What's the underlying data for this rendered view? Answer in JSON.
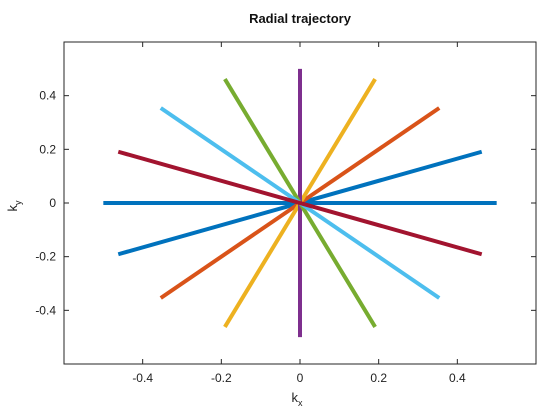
{
  "chart_data": {
    "type": "line",
    "title": "Radial trajectory",
    "xlabel": {
      "base": "k",
      "sub": "x"
    },
    "ylabel": {
      "base": "k",
      "sub": "y"
    },
    "xlim": [
      -0.6,
      0.6
    ],
    "ylim": [
      -0.6,
      0.6
    ],
    "xticks": [
      -0.4,
      -0.2,
      0,
      0.2,
      0.4
    ],
    "xtick_labels": [
      "-0.4",
      "-0.2",
      "0",
      "0.2",
      "0.4"
    ],
    "yticks": [
      -0.4,
      -0.2,
      0,
      0.2,
      0.4
    ],
    "ytick_labels": [
      "-0.4",
      "-0.2",
      "0",
      "0.2",
      "0.4"
    ],
    "grid": false,
    "series": [
      {
        "color": "#0072BD",
        "x": [
          -0.5,
          0.5
        ],
        "y": [
          0,
          0
        ]
      },
      {
        "color": "#0072BD",
        "x": [
          -0.462,
          0.462
        ],
        "y": [
          -0.191,
          0.191
        ]
      },
      {
        "color": "#D95319",
        "x": [
          -0.354,
          0.354
        ],
        "y": [
          -0.354,
          0.354
        ]
      },
      {
        "color": "#EDB120",
        "x": [
          -0.191,
          0.191
        ],
        "y": [
          -0.462,
          0.462
        ]
      },
      {
        "color": "#7E2F8E",
        "x": [
          0,
          0
        ],
        "y": [
          -0.5,
          0.5
        ]
      },
      {
        "color": "#77AC30",
        "x": [
          0.191,
          -0.191
        ],
        "y": [
          -0.462,
          0.462
        ]
      },
      {
        "color": "#4DBEEE",
        "x": [
          0.354,
          -0.354
        ],
        "y": [
          -0.354,
          0.354
        ]
      },
      {
        "color": "#A2142F",
        "x": [
          0.462,
          -0.462
        ],
        "y": [
          -0.191,
          0.191
        ]
      }
    ]
  }
}
